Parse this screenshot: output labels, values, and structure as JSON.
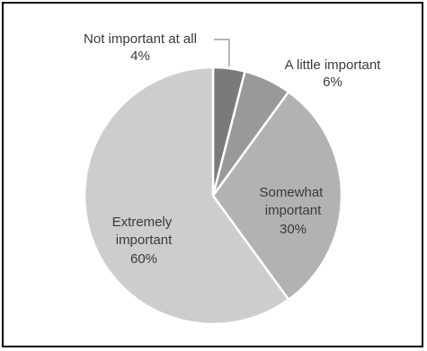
{
  "chart_data": {
    "type": "pie",
    "title": "",
    "start_angle_deg": 0,
    "direction": "clockwise",
    "slices": [
      {
        "label": "Not important at all",
        "percent_label": "4%",
        "value": 4,
        "color": "#7a7a7a"
      },
      {
        "label": "A little important",
        "percent_label": "6%",
        "value": 6,
        "color": "#999999"
      },
      {
        "label": "Somewhat important",
        "percent_label": "30%",
        "value": 30,
        "color": "#b2b2b2"
      },
      {
        "label": "Extremely important",
        "percent_label": "60%",
        "value": 60,
        "color": "#cdcdcd"
      }
    ],
    "legend": "none",
    "data_labels": "outside-and-inside"
  }
}
